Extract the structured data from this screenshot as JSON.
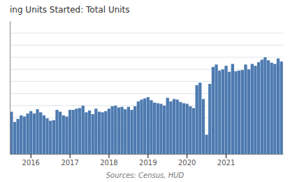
{
  "chart_data": {
    "type": "bar",
    "title": "ing Units Started: Total Units",
    "annotations": [
      "Sources: Census, HUD"
    ],
    "categories": [
      null,
      null,
      null,
      null,
      null,
      null,
      "2016",
      null,
      null,
      null,
      null,
      null,
      null,
      null,
      null,
      null,
      null,
      null,
      "2017",
      null,
      null,
      null,
      null,
      null,
      null,
      null,
      null,
      null,
      null,
      null,
      "2018",
      null,
      null,
      null,
      null,
      null,
      null,
      null,
      null,
      null,
      null,
      null,
      "2019",
      null,
      null,
      null,
      null,
      null,
      null,
      null,
      null,
      null,
      null,
      null,
      "2020",
      null,
      null,
      null,
      null,
      null,
      null,
      null,
      null,
      null,
      null,
      null,
      "2021",
      null,
      null,
      null,
      null,
      null,
      null,
      null,
      null,
      null,
      null,
      null,
      null,
      null,
      null,
      null,
      null,
      null
    ],
    "values": [
      1150,
      1065,
      1090,
      1120,
      1110,
      1135,
      1155,
      1135,
      1170,
      1145,
      1120,
      1095,
      1075,
      1080,
      1165,
      1150,
      1120,
      1110,
      1165,
      1165,
      1175,
      1180,
      1200,
      1145,
      1160,
      1130,
      1175,
      1150,
      1145,
      1155,
      1175,
      1195,
      1200,
      1185,
      1190,
      1170,
      1190,
      1165,
      1195,
      1235,
      1250,
      1260,
      1270,
      1245,
      1225,
      1220,
      1215,
      1200,
      1265,
      1235,
      1255,
      1250,
      1230,
      1220,
      1215,
      1195,
      1180,
      1370,
      1390,
      1255,
      960,
      1380,
      1520,
      1540,
      1490,
      1500,
      1530,
      1480,
      1545,
      1485,
      1490,
      1495,
      1540,
      1500,
      1545,
      1530,
      1560,
      1580,
      1600,
      1575,
      1555,
      1545,
      1590,
      1565
    ],
    "color": "#4d7ab0",
    "ylim": [
      800,
      1900
    ],
    "yticks": [
      900,
      1000,
      1100,
      1200,
      1300,
      1400,
      1500,
      1600,
      1700,
      1800
    ],
    "grid": true,
    "tick_labels": "x"
  }
}
